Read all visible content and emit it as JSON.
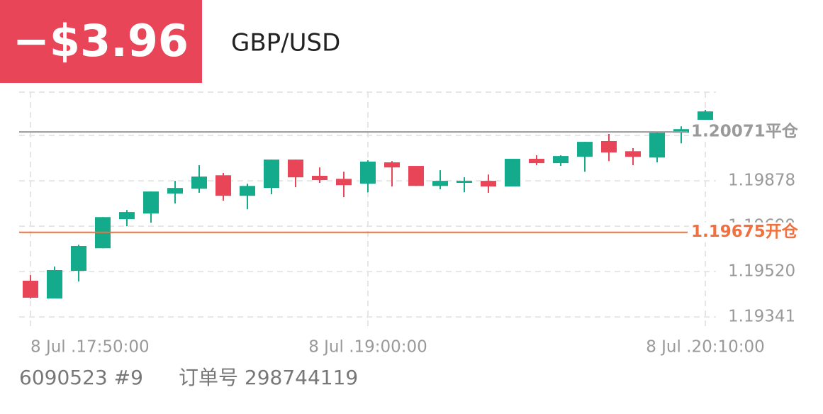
{
  "header": {
    "pnl": "−$3.96",
    "symbol": "GBP/USD"
  },
  "chart_data": {
    "type": "candlestick",
    "categories": [
      "8 Jul .17:50:00",
      null,
      null,
      null,
      null,
      null,
      null,
      null,
      null,
      null,
      null,
      null,
      null,
      null,
      "8 Jul .19:00:00",
      null,
      null,
      null,
      null,
      null,
      null,
      null,
      null,
      null,
      null,
      null,
      null,
      null,
      "8 Jul .20:10:00"
    ],
    "open": [
      1.19484,
      1.19414,
      1.19523,
      1.19612,
      1.19727,
      1.19749,
      1.19828,
      1.19847,
      1.199,
      1.19819,
      1.1985,
      1.19962,
      1.19898,
      1.19886,
      1.19867,
      1.19951,
      1.19937,
      1.19858,
      1.1987,
      1.19878,
      1.19856,
      1.19965,
      1.19948,
      1.19973,
      1.20035,
      1.19995,
      1.1997,
      1.20068,
      1.20119
    ],
    "high": [
      1.19506,
      1.1954,
      1.19626,
      1.19735,
      1.19763,
      1.19836,
      1.19878,
      1.1994,
      1.19909,
      1.19867,
      1.19962,
      1.19962,
      1.19931,
      1.19914,
      1.19959,
      1.19956,
      1.19937,
      1.1992,
      1.19892,
      1.19903,
      1.19965,
      1.19979,
      1.19979,
      1.20032,
      1.20063,
      1.20007,
      1.20071,
      1.20093,
      1.20158
    ],
    "low": [
      1.19414,
      1.19414,
      1.19481,
      1.19612,
      1.19699,
      1.19713,
      1.19789,
      1.19831,
      1.198,
      1.19766,
      1.19825,
      1.19853,
      1.1987,
      1.19814,
      1.19833,
      1.19856,
      1.19858,
      1.19845,
      1.19833,
      1.19831,
      1.19856,
      1.1994,
      1.19937,
      1.19914,
      1.19956,
      1.1994,
      1.19951,
      1.20026,
      1.20119
    ],
    "close": [
      1.19417,
      1.19526,
      1.19621,
      1.19735,
      1.19755,
      1.19836,
      1.1985,
      1.19895,
      1.19819,
      1.19858,
      1.19962,
      1.19892,
      1.19881,
      1.19861,
      1.19954,
      1.19931,
      1.19858,
      1.19878,
      1.19878,
      1.19856,
      1.19965,
      1.19948,
      1.19976,
      1.20032,
      1.1999,
      1.19973,
      1.20068,
      1.20082,
      1.20152
    ],
    "up_color": "#13ab8b",
    "down_color": "#e84559",
    "ylim": [
      1.19305,
      1.20228
    ],
    "yticks": [
      1.19341,
      {
        "value": 1.1952,
        "label": "1.19520"
      },
      1.19699,
      1.19878,
      1.20057
    ],
    "grid": true,
    "lines": [
      {
        "value": 1.20071,
        "label": "1.20071平仓",
        "color": "#9a9a9a"
      },
      {
        "value": 1.19675,
        "label": "1.19675开仓",
        "color": "#f2703e"
      }
    ]
  },
  "footer": {
    "account": "6090523 #9",
    "order": "订单号 298744119"
  }
}
